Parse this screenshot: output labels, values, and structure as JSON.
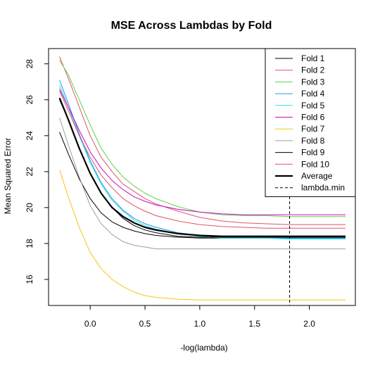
{
  "chart_data": {
    "type": "line",
    "title": "MSE Across Lambdas by Fold",
    "xlabel": "-log(lambda)",
    "ylabel": "Mean Squared Error",
    "xlim": [
      -0.38,
      2.42
    ],
    "ylim": [
      14.55,
      28.85
    ],
    "x_ticks": [
      0.0,
      0.5,
      1.0,
      1.5,
      2.0
    ],
    "x_tick_labels": [
      "0.0",
      "0.5",
      "1.0",
      "1.5",
      "2.0"
    ],
    "y_ticks": [
      16,
      18,
      20,
      22,
      24,
      26,
      28
    ],
    "y_tick_labels": [
      "16",
      "18",
      "20",
      "22",
      "24",
      "26",
      "28"
    ],
    "grid": false,
    "legend_position": "top-right",
    "x": [
      -0.28,
      -0.2,
      -0.1,
      0.0,
      0.1,
      0.2,
      0.3,
      0.4,
      0.5,
      0.6,
      0.8,
      1.0,
      1.2,
      1.4,
      1.6,
      1.82,
      2.0,
      2.33
    ],
    "series": [
      {
        "name": "Fold 1",
        "color": "#000000",
        "values": [
          24.2,
          23.0,
          21.6,
          20.5,
          19.7,
          19.2,
          18.9,
          18.7,
          18.55,
          18.45,
          18.35,
          18.3,
          18.3,
          18.3,
          18.3,
          18.3,
          18.3,
          18.3
        ]
      },
      {
        "name": "Fold 2",
        "color": "#DF536B",
        "values": [
          28.4,
          27.2,
          25.6,
          24.0,
          22.8,
          22.0,
          21.3,
          20.9,
          20.5,
          20.2,
          19.8,
          19.45,
          19.25,
          19.15,
          19.1,
          19.05,
          19.05,
          19.05
        ]
      },
      {
        "name": "Fold 3",
        "color": "#61D04F",
        "values": [
          28.2,
          27.4,
          26.0,
          24.6,
          23.3,
          22.4,
          21.7,
          21.2,
          20.8,
          20.5,
          20.05,
          19.75,
          19.6,
          19.55,
          19.55,
          19.5,
          19.5,
          19.5
        ]
      },
      {
        "name": "Fold 4",
        "color": "#2297E6",
        "values": [
          27.1,
          25.8,
          24.1,
          22.6,
          21.4,
          20.5,
          19.85,
          19.4,
          19.1,
          18.9,
          18.6,
          18.45,
          18.35,
          18.3,
          18.3,
          18.3,
          18.3,
          18.3
        ]
      },
      {
        "name": "Fold 5",
        "color": "#28E2E5",
        "values": [
          26.8,
          25.6,
          24.0,
          22.5,
          21.3,
          20.4,
          19.8,
          19.3,
          19.0,
          18.8,
          18.55,
          18.4,
          18.3,
          18.3,
          18.3,
          18.25,
          18.25,
          18.25
        ]
      },
      {
        "name": "Fold 6",
        "color": "#CD0BBC",
        "values": [
          26.6,
          25.6,
          24.3,
          23.1,
          22.2,
          21.5,
          21.0,
          20.6,
          20.35,
          20.15,
          19.9,
          19.75,
          19.65,
          19.6,
          19.6,
          19.6,
          19.6,
          19.6
        ]
      },
      {
        "name": "Fold 7",
        "color": "#F5C710",
        "values": [
          22.1,
          20.6,
          18.9,
          17.5,
          16.6,
          16.0,
          15.6,
          15.3,
          15.1,
          15.0,
          14.9,
          14.85,
          14.85,
          14.85,
          14.85,
          14.85,
          14.85,
          14.85
        ]
      },
      {
        "name": "Fold 8",
        "color": "#9E9E9E",
        "values": [
          25.0,
          23.5,
          21.7,
          20.1,
          19.1,
          18.5,
          18.1,
          17.9,
          17.8,
          17.7,
          17.7,
          17.7,
          17.7,
          17.7,
          17.7,
          17.7,
          17.7,
          17.7
        ]
      },
      {
        "name": "Fold 9",
        "color": "#000000",
        "values": [
          26.0,
          24.9,
          23.3,
          21.9,
          20.8,
          20.0,
          19.4,
          19.0,
          18.75,
          18.6,
          18.4,
          18.35,
          18.35,
          18.35,
          18.35,
          18.35,
          18.35,
          18.35
        ]
      },
      {
        "name": "Fold 10",
        "color": "#DF536B",
        "values": [
          26.5,
          25.4,
          24.0,
          22.8,
          21.8,
          21.1,
          20.5,
          20.1,
          19.8,
          19.55,
          19.25,
          19.05,
          18.95,
          18.9,
          18.85,
          18.85,
          18.85,
          18.85
        ]
      },
      {
        "name": "Average",
        "color": "#000000",
        "bold": true,
        "values": [
          26.1,
          24.9,
          23.3,
          21.9,
          20.8,
          20.0,
          19.5,
          19.15,
          18.9,
          18.75,
          18.55,
          18.45,
          18.4,
          18.4,
          18.4,
          18.4,
          18.4,
          18.4
        ]
      }
    ],
    "vline": {
      "name": "lambda.min",
      "x": 1.82,
      "color": "#000000",
      "dashed": true
    }
  }
}
